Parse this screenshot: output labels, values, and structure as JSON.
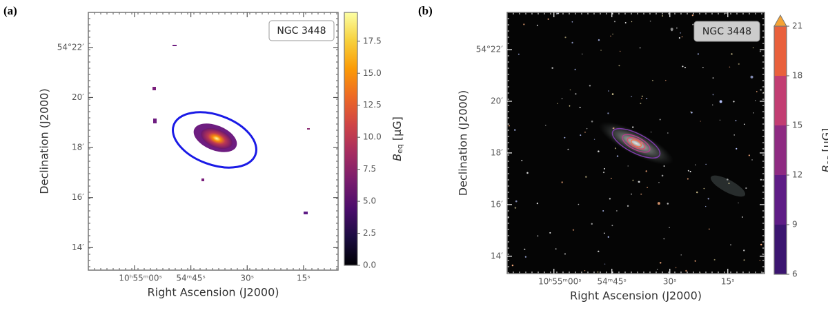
{
  "chart_data": [
    {
      "type": "image",
      "panel_label": "(a)",
      "annotation": "NGC 3448",
      "xlabel": "Right Ascension (J2000)",
      "ylabel": "Declination (J2000)",
      "xlim": [
        72.3,
        5.8
      ],
      "xticks": [
        {
          "value": 60,
          "label": "10ʰ55ᵐ00ˢ"
        },
        {
          "value": 45,
          "label": "54ᵐ45ˢ"
        },
        {
          "value": 30,
          "label": "30ˢ"
        },
        {
          "value": 15,
          "label": "15ˢ"
        }
      ],
      "ylim": [
        13.1,
        23.4
      ],
      "yticks": [
        {
          "value": 22,
          "label": "54°22′"
        },
        {
          "value": 20,
          "label": "20′"
        },
        {
          "value": 18,
          "label": "18′"
        },
        {
          "value": 16,
          "label": "16′"
        },
        {
          "value": 14,
          "label": "14′"
        }
      ],
      "colorbar_symbol": "B",
      "colorbar_subscript": "eq",
      "colorbar_unit": "[μG]",
      "colormap": "inferno",
      "clim": [
        0,
        19.75
      ],
      "cticks": [
        {
          "value": 0,
          "label": "0.0"
        },
        {
          "value": 2.5,
          "label": "2.5"
        },
        {
          "value": 5,
          "label": "5.0"
        },
        {
          "value": 7.5,
          "label": "7.5"
        },
        {
          "value": 10,
          "label": "10.0"
        },
        {
          "value": 12.5,
          "label": "12.5"
        },
        {
          "value": 15,
          "label": "15.0"
        },
        {
          "value": 17.5,
          "label": "17.5"
        }
      ]
    },
    {
      "type": "image",
      "panel_label": "(b)",
      "annotation": "NGC 3448",
      "xlabel": "Right Ascension (J2000)",
      "ylabel": "Declination (J2000)",
      "xlim": [
        72.1,
        5.5
      ],
      "xticks": [
        {
          "value": 60,
          "label": "10ʰ55ᵐ00ˢ"
        },
        {
          "value": 45,
          "label": "54ᵐ45ˢ"
        },
        {
          "value": 30,
          "label": "30ˢ"
        },
        {
          "value": 15,
          "label": "15ˢ"
        }
      ],
      "ylim": [
        13.33,
        23.44
      ],
      "yticks": [
        {
          "value": 22,
          "label": "54°22′"
        },
        {
          "value": 20,
          "label": "20′"
        },
        {
          "value": 18,
          "label": "18′"
        },
        {
          "value": 16,
          "label": "16′"
        },
        {
          "value": 14,
          "label": "14′"
        }
      ],
      "colorbar_symbol": "B",
      "colorbar_subscript": "eq",
      "colorbar_unit": "[μG]",
      "clim": [
        6,
        21
      ],
      "cticks": [
        6,
        9,
        12,
        15,
        18,
        21
      ],
      "level_colors": [
        "#3b1570",
        "#5e1c86",
        "#8e2a82",
        "#c23d72",
        "#e9603c"
      ],
      "extend_color": "#f5a334"
    }
  ]
}
